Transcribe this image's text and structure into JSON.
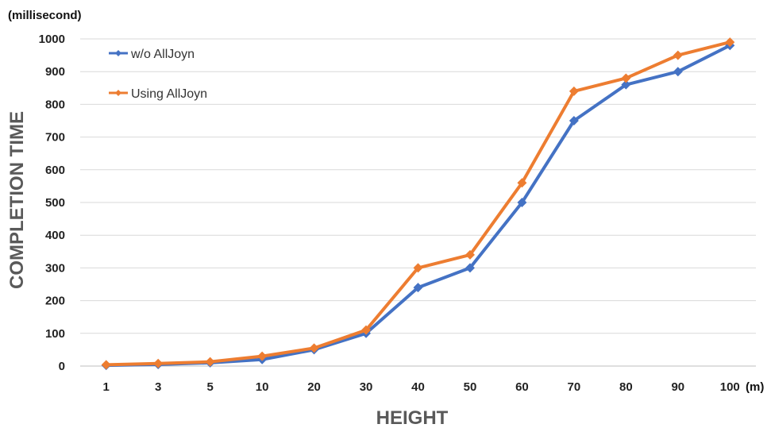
{
  "chart_data": {
    "type": "line",
    "title": "",
    "xlabel": "HEIGHT",
    "ylabel": "COMPLETION TIME",
    "x_unit": "(m)",
    "y_unit": "(millisecond)",
    "categories": [
      "1",
      "3",
      "5",
      "10",
      "20",
      "30",
      "40",
      "50",
      "60",
      "70",
      "80",
      "90",
      "100"
    ],
    "ylim": [
      0,
      1000
    ],
    "yticks": [
      0,
      100,
      200,
      300,
      400,
      500,
      600,
      700,
      800,
      900,
      1000
    ],
    "grid": "horizontal",
    "legend_position": "top-left",
    "series": [
      {
        "name": "w/o AllJoyn",
        "color": "#4472C4",
        "values": [
          2,
          5,
          10,
          20,
          50,
          100,
          240,
          300,
          500,
          750,
          860,
          900,
          980
        ]
      },
      {
        "name": "Using AllJoyn",
        "color": "#ED7D31",
        "values": [
          4,
          8,
          13,
          30,
          55,
          110,
          300,
          340,
          560,
          840,
          880,
          950,
          990
        ]
      }
    ]
  }
}
